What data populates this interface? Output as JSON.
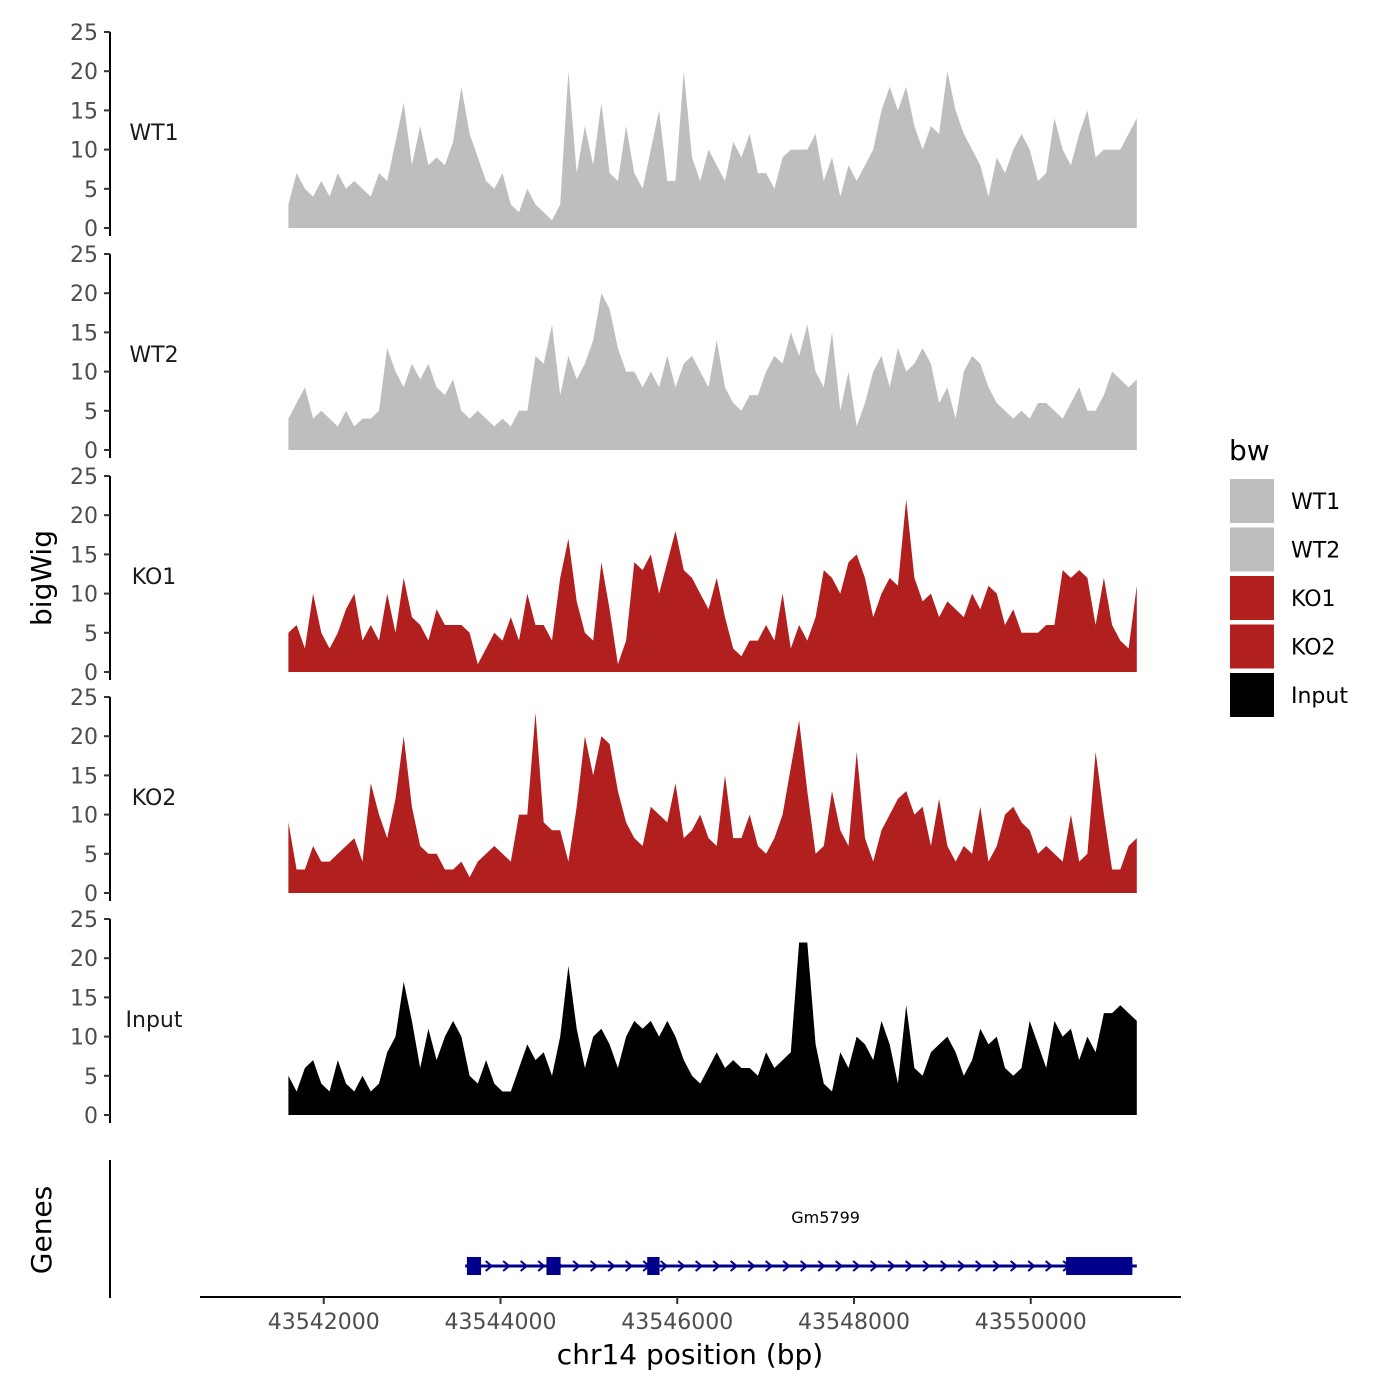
{
  "chart_data": {
    "type": "area",
    "ylabel": "bigWig",
    "xlabel": "chr14 position (bp)",
    "genes_label": "Genes",
    "region": [
      43541600,
      43551200
    ],
    "xlim": [
      43540600,
      43551700
    ],
    "ylim": [
      0,
      25
    ],
    "yticks": [
      0,
      5,
      10,
      15,
      20,
      25
    ],
    "xticks": [
      43542000,
      43544000,
      43546000,
      43548000,
      43550000
    ],
    "legend": {
      "title": "bw",
      "entries": [
        {
          "label": "WT1",
          "color": "#bebebe"
        },
        {
          "label": "WT2",
          "color": "#bebebe"
        },
        {
          "label": "KO1",
          "color": "#b21f1f"
        },
        {
          "label": "KO2",
          "color": "#b21f1f"
        },
        {
          "label": "Input",
          "color": "#000000"
        }
      ]
    },
    "tracks": [
      {
        "name": "WT1",
        "color": "#bebebe",
        "values": [
          3,
          7,
          5,
          4,
          6,
          4,
          7,
          5,
          6,
          5,
          4,
          7,
          6,
          11,
          16,
          8,
          13,
          8,
          9,
          8,
          11,
          18,
          12,
          9,
          6,
          5,
          7,
          3,
          2,
          5,
          3,
          2,
          1,
          3,
          20,
          7,
          13,
          8,
          16,
          7,
          6,
          13,
          7,
          5,
          10,
          15,
          6,
          6,
          20,
          9,
          6,
          10,
          8,
          6,
          11,
          9,
          12,
          7,
          7,
          5,
          9,
          10,
          10,
          10,
          12,
          6,
          9,
          4,
          8,
          6,
          8,
          10,
          15,
          18,
          15,
          18,
          13,
          10,
          13,
          12,
          20,
          15,
          12,
          10,
          8,
          4,
          9,
          7,
          10,
          12,
          10,
          6,
          7,
          14,
          10,
          8,
          12,
          15,
          9,
          10,
          10,
          10,
          12,
          14
        ]
      },
      {
        "name": "WT2",
        "color": "#bebebe",
        "values": [
          4,
          6,
          8,
          4,
          5,
          4,
          3,
          5,
          3,
          4,
          4,
          5,
          13,
          10,
          8,
          11,
          9,
          11,
          8,
          7,
          9,
          5,
          4,
          5,
          4,
          3,
          4,
          3,
          5,
          5,
          12,
          11,
          16,
          7,
          12,
          9,
          11,
          14,
          20,
          18,
          13,
          10,
          10,
          8,
          10,
          8,
          12,
          8,
          11,
          12,
          10,
          8,
          14,
          8,
          6,
          5,
          7,
          7,
          10,
          12,
          11,
          15,
          12,
          16,
          10,
          8,
          15,
          5,
          10,
          3,
          6,
          10,
          12,
          8,
          13,
          10,
          11,
          13,
          11,
          6,
          8,
          4,
          10,
          12,
          11,
          8,
          6,
          5,
          4,
          5,
          4,
          6,
          6,
          5,
          4,
          6,
          8,
          5,
          5,
          7,
          10,
          9,
          8,
          9
        ]
      },
      {
        "name": "KO1",
        "color": "#b21f1f",
        "values": [
          5,
          6,
          3,
          10,
          5,
          3,
          5,
          8,
          10,
          4,
          6,
          4,
          10,
          5,
          12,
          7,
          6,
          4,
          8,
          6,
          6,
          6,
          5,
          1,
          3,
          5,
          4,
          7,
          4,
          10,
          6,
          6,
          4,
          12,
          17,
          9,
          5,
          4,
          14,
          8,
          1,
          4,
          14,
          13,
          15,
          10,
          14,
          18,
          13,
          12,
          10,
          8,
          12,
          7,
          3,
          2,
          4,
          4,
          6,
          4,
          10,
          3,
          6,
          4,
          7,
          13,
          12,
          10,
          14,
          15,
          12,
          7,
          10,
          12,
          11,
          22,
          12,
          9,
          10,
          7,
          9,
          8,
          7,
          10,
          8,
          11,
          10,
          6,
          8,
          5,
          5,
          5,
          6,
          6,
          13,
          12,
          13,
          12,
          6,
          12,
          6,
          4,
          3,
          11
        ]
      },
      {
        "name": "KO2",
        "color": "#b21f1f",
        "values": [
          9,
          3,
          3,
          6,
          4,
          4,
          5,
          6,
          7,
          4,
          14,
          10,
          7,
          12,
          20,
          11,
          6,
          5,
          5,
          3,
          3,
          4,
          2,
          4,
          5,
          6,
          5,
          4,
          10,
          10,
          23,
          9,
          8,
          8,
          4,
          11,
          20,
          15,
          20,
          19,
          13,
          9,
          7,
          6,
          11,
          10,
          9,
          14,
          7,
          8,
          10,
          7,
          6,
          15,
          7,
          7,
          10,
          6,
          5,
          7,
          10,
          16,
          22,
          13,
          5,
          6,
          13,
          8,
          6,
          18,
          7,
          4,
          8,
          10,
          12,
          13,
          10,
          11,
          6,
          12,
          6,
          4,
          6,
          5,
          11,
          4,
          6,
          10,
          11,
          9,
          8,
          5,
          6,
          5,
          4,
          10,
          4,
          5,
          18,
          10,
          3,
          3,
          6,
          7
        ]
      },
      {
        "name": "Input",
        "color": "#000000",
        "values": [
          5,
          3,
          6,
          7,
          4,
          3,
          7,
          4,
          3,
          5,
          3,
          4,
          8,
          10,
          17,
          12,
          6,
          11,
          7,
          10,
          12,
          10,
          5,
          4,
          7,
          4,
          3,
          3,
          6,
          9,
          7,
          8,
          5,
          10,
          19,
          11,
          6,
          10,
          11,
          9,
          6,
          10,
          12,
          11,
          12,
          10,
          12,
          10,
          7,
          5,
          4,
          6,
          8,
          6,
          7,
          6,
          6,
          5,
          8,
          6,
          7,
          8,
          22,
          22,
          9,
          4,
          3,
          8,
          6,
          10,
          9,
          7,
          12,
          9,
          4,
          14,
          6,
          5,
          8,
          9,
          10,
          8,
          5,
          7,
          11,
          9,
          10,
          6,
          5,
          6,
          12,
          9,
          6,
          12,
          10,
          11,
          7,
          10,
          8,
          13,
          13,
          14,
          13,
          12
        ]
      }
    ],
    "gene": {
      "name": "Gm5799",
      "start": 43543600,
      "end": 43551200,
      "strand": "+",
      "color": "#00008b",
      "exons": [
        [
          43543620,
          43543780
        ],
        [
          43544520,
          43544680
        ],
        [
          43545660,
          43545800
        ],
        [
          43550400,
          43551150
        ]
      ]
    }
  }
}
